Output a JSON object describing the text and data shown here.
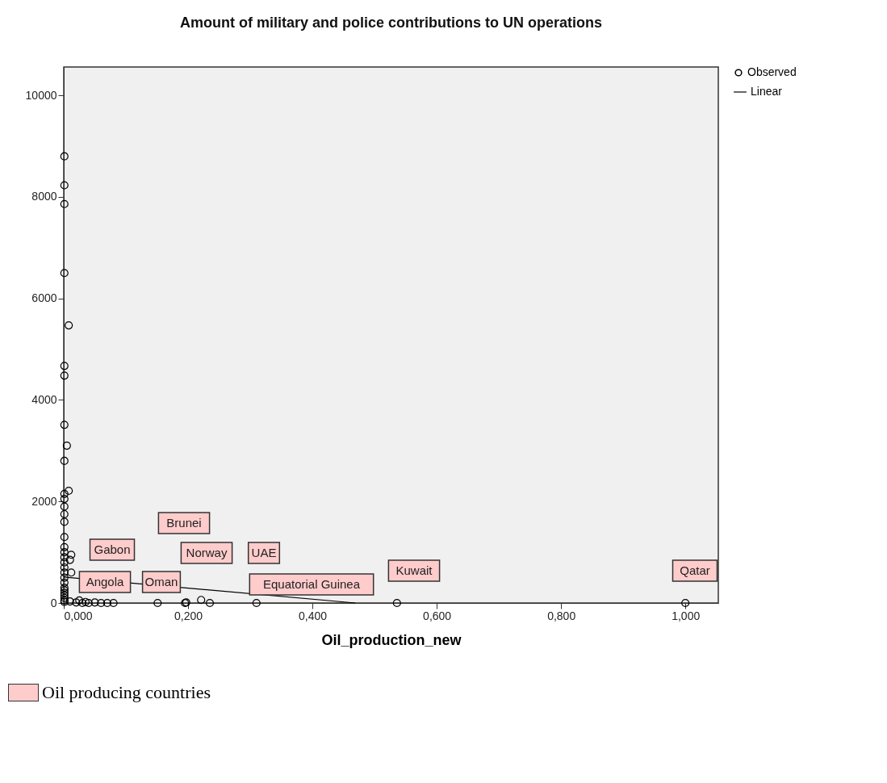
{
  "chart_data": {
    "type": "scatter",
    "title": "Amount of military and police contributions to UN operations",
    "xlabel": "Oil_production_new",
    "xlim": [
      0,
      1.053
    ],
    "ylim": [
      0,
      10560
    ],
    "xticks": [
      {
        "value": 0,
        "label": "0,000"
      },
      {
        "value": 0.2,
        "label": "0,200"
      },
      {
        "value": 0.4,
        "label": "0,400"
      },
      {
        "value": 0.6,
        "label": "0,600"
      },
      {
        "value": 0.8,
        "label": "0,800"
      },
      {
        "value": 1,
        "label": "1,000"
      }
    ],
    "yticks": [
      0,
      2000,
      4000,
      6000,
      8000,
      10000
    ],
    "grid": false,
    "legend": "top right",
    "series": [
      {
        "name": "Observed",
        "marker": "circle",
        "color": "#000000",
        "x": [
          0.001,
          0.001,
          0.001,
          0.001,
          0.001,
          0.001,
          0.001,
          0.001,
          0.001,
          0.001,
          0.001,
          0.001,
          0.001,
          0.001,
          0.001,
          0.001,
          0.001,
          0.001,
          0.001,
          0.001,
          0.001,
          0.001,
          0.001,
          0.001,
          0.001,
          0.001,
          0.001,
          0.001,
          0.001,
          0.008,
          0.005,
          0.008,
          0.012,
          0.01,
          0.012,
          0.01,
          0.02,
          0.025,
          0.03,
          0.035,
          0.04,
          0.05,
          0.06,
          0.07,
          0.08,
          0.151,
          0.195,
          0.197,
          0.221,
          0.235,
          0.31,
          0.536,
          1.0
        ],
        "values": [
          8800,
          8230,
          7860,
          6500,
          4670,
          4480,
          3510,
          2800,
          2150,
          2050,
          1900,
          1750,
          1600,
          1300,
          1100,
          1000,
          900,
          800,
          700,
          600,
          500,
          400,
          300,
          250,
          200,
          150,
          100,
          50,
          20,
          5470,
          3100,
          2210,
          950,
          850,
          600,
          30,
          10,
          50,
          0,
          20,
          0,
          10,
          0,
          0,
          0,
          0,
          0,
          10,
          60,
          0,
          0,
          0,
          0
        ]
      },
      {
        "name": "Linear",
        "type": "line",
        "line_style": "solid",
        "color": "#000000",
        "x": [
          0,
          0.469
        ],
        "values": [
          510,
          0
        ]
      }
    ],
    "annotations": [
      "Brunei",
      "Gabon",
      "Norway",
      "UAE",
      "Angola",
      "Oman",
      "Equatorial Guinea",
      "Kuwait",
      "Qatar",
      "Oil producing countries"
    ]
  }
}
